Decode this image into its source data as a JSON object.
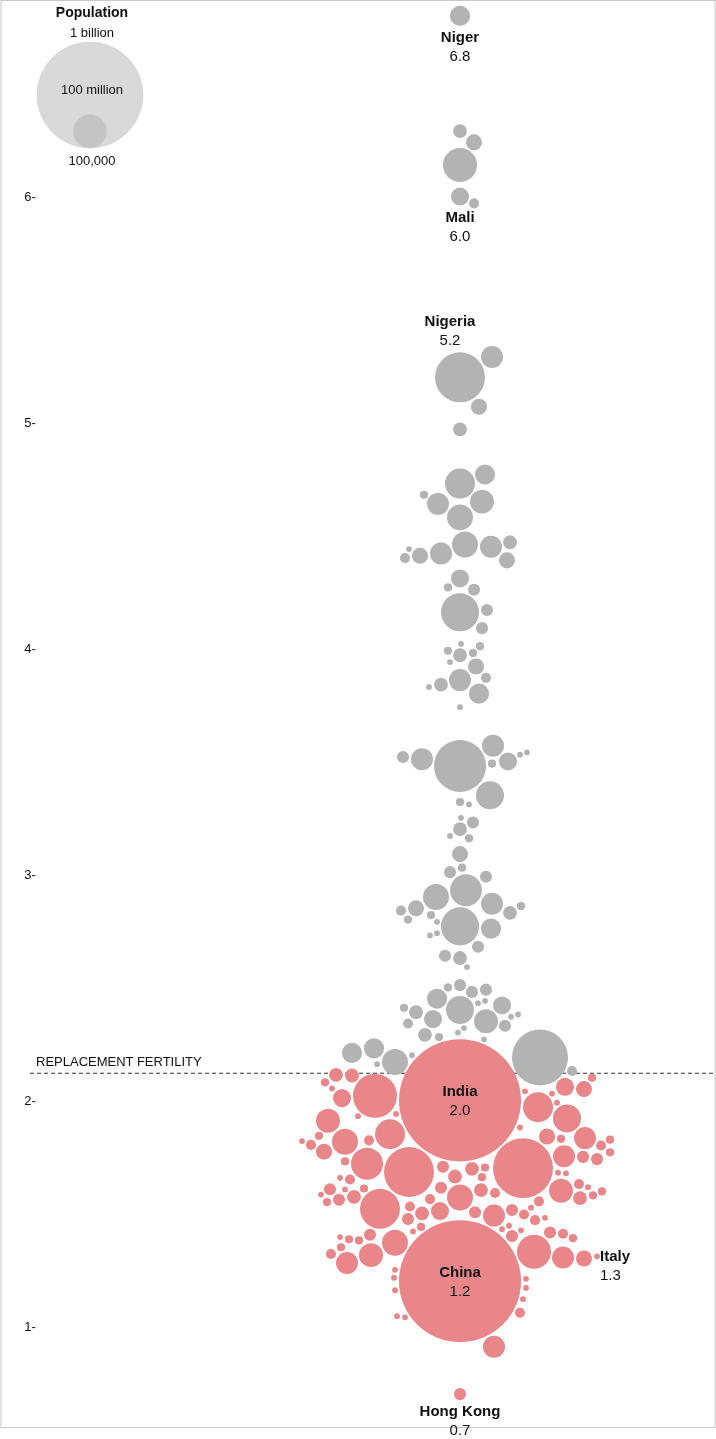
{
  "chart_data": {
    "type": "bubble",
    "legend_title": "Population",
    "size_legend": [
      {
        "value": 1000000000,
        "label": "1 billion"
      },
      {
        "value": 100000000,
        "label": "100 million"
      },
      {
        "value": 100000,
        "label": "100,000"
      }
    ],
    "categories": [
      null
    ],
    "ylim": [
      0.55,
      6.87
    ],
    "yticks": [
      {
        "value": 1,
        "label": "1-"
      },
      {
        "value": 2,
        "label": "2-"
      },
      {
        "value": 3,
        "label": "3-"
      },
      {
        "value": 4,
        "label": "4-"
      },
      {
        "value": 5,
        "label": "5-"
      },
      {
        "value": 6,
        "label": "6-"
      }
    ],
    "tick_labels": "y",
    "ref_lines": [
      {
        "axis": "y",
        "value": 2.12,
        "label": "REPLACEMENT FERTILITY",
        "line_style": "dashed",
        "color": "#333333"
      }
    ],
    "annotations": [
      "Niger",
      "Mali",
      "Nigeria",
      "India",
      "China",
      "Italy",
      "Hong Kong"
    ],
    "series": [
      {
        "color": "#b3b3b3",
        "x": [
          null,
          null,
          null,
          null,
          null,
          null,
          null,
          null,
          null,
          null,
          null,
          null,
          null,
          null,
          null,
          null,
          null,
          null,
          null,
          null,
          null,
          null,
          null,
          null,
          null,
          null,
          null,
          null,
          null,
          null,
          null,
          null,
          null,
          null,
          null,
          null,
          null,
          null,
          null,
          null,
          null,
          null,
          null,
          null,
          null,
          null,
          null,
          null,
          null,
          null,
          null,
          null,
          null,
          null,
          null,
          null,
          null,
          null,
          null,
          null,
          null,
          null,
          null,
          null,
          null,
          null,
          null,
          null,
          null,
          null,
          null,
          null,
          null,
          null,
          null,
          null,
          null,
          null,
          null,
          null,
          null,
          null,
          null,
          null,
          null,
          null,
          null,
          null,
          null,
          null,
          null,
          null,
          null,
          null,
          null,
          null,
          null,
          null,
          null,
          null,
          null,
          null,
          null,
          null,
          null,
          null,
          null
        ],
        "values": [
          6.29,
          6.24,
          6.14,
          5.97,
          5.29,
          5.07,
          4.97,
          4.73,
          4.77,
          4.68,
          4.64,
          4.65,
          4.58,
          4.46,
          4.4,
          4.42,
          4.44,
          4.41,
          4.45,
          4.47,
          4.39,
          4.31,
          4.26,
          4.27,
          4.16,
          4.17,
          4.09,
          4.02,
          3.98,
          3.99,
          3.97,
          4.01,
          3.92,
          3.94,
          3.87,
          3.83,
          3.84,
          3.86,
          3.8,
          3.74,
          3.57,
          3.51,
          3.5,
          3.49,
          3.52,
          3.48,
          3.53,
          3.54,
          3.35,
          3.32,
          3.31,
          3.25,
          3.23,
          3.2,
          3.17,
          3.16,
          3.09,
          3.01,
          3.03,
          2.99,
          2.93,
          2.9,
          2.87,
          2.83,
          2.85,
          2.86,
          2.82,
          2.79,
          2.8,
          2.84,
          2.77,
          2.76,
          2.74,
          2.73,
          2.68,
          2.63,
          2.64,
          2.59,
          2.51,
          2.48,
          2.49,
          2.5,
          2.45,
          2.42,
          2.41,
          2.4,
          2.43,
          2.44,
          2.37,
          2.35,
          2.38,
          2.36,
          2.39,
          2.34,
          2.29,
          2.33,
          2.32,
          2.3,
          2.28,
          2.27,
          2.17,
          2.23,
          2.19,
          2.21,
          2.2,
          2.13,
          2.16
        ],
        "sizes": [
          17000000.0,
          23000000.0,
          103000000.0,
          9000000.0,
          43000000.0,
          23000000.0,
          17000000.0,
          80000000.0,
          36000000.0,
          6000000.0,
          43000000.0,
          51000000.0,
          60000000.0,
          60000000.0,
          9000000.0,
          43000000.0,
          3000000.0,
          23000000.0,
          43000000.0,
          17000000.0,
          23000000.0,
          29000000.0,
          13000000.0,
          6000000.0,
          129000000.0,
          13000000.0,
          13000000.0,
          3000000.0,
          6000000.0,
          6000000.0,
          17000000.0,
          6000000.0,
          23000000.0,
          3000000.0,
          9000000.0,
          3000000.0,
          17000000.0,
          43000000.0,
          36000000.0,
          3000000.0,
          43000000.0,
          43000000.0,
          29000000.0,
          6000000.0,
          13000000.0,
          241000000.0,
          3000000.0,
          3000000.0,
          70000000.0,
          6000000.0,
          3000000.0,
          3000000.0,
          13000000.0,
          17000000.0,
          3000000.0,
          6000000.0,
          23000000.0,
          13000000.0,
          6000000.0,
          13000000.0,
          91000000.0,
          60000000.0,
          43000000.0,
          17000000.0,
          23000000.0,
          6000000.0,
          6000000.0,
          3000000.0,
          6000000.0,
          9000000.0,
          129000000.0,
          36000000.0,
          3000000.0,
          3000000.0,
          13000000.0,
          17000000.0,
          13000000.0,
          3000000.0,
          13000000.0,
          13000000.0,
          13000000.0,
          6000000.0,
          36000000.0,
          29000000.0,
          6000000.0,
          70000000.0,
          3000000.0,
          3000000.0,
          3000000.0,
          51000000.0,
          3000000.0,
          29000000.0,
          17000000.0,
          9000000.0,
          17000000.0,
          13000000.0,
          3000000.0,
          3000000.0,
          6000000.0,
          3000000.0,
          60000000.0,
          36000000.0,
          279000000.0,
          36000000.0,
          3000000.0,
          9000000.0,
          3000000.0
        ]
      },
      {
        "color": "#b3b3b3",
        "x": [
          null,
          null,
          null
        ],
        "values": [
          6.8,
          6.0,
          5.2
        ],
        "sizes": [
          36000000.0,
          29000000.0,
          222000000.0
        ],
        "value_labels": [
          "6.8",
          "6.0",
          "5.2"
        ]
      },
      {
        "color": "#e8868a",
        "x": [
          null,
          null,
          null,
          null,
          null,
          null,
          null,
          null,
          null,
          null,
          null,
          null,
          null,
          null,
          null,
          null,
          null,
          null,
          null,
          null,
          null,
          null,
          null,
          null,
          null,
          null,
          null,
          null,
          null,
          null,
          null,
          null,
          null,
          null,
          null,
          null,
          null,
          null,
          null,
          null,
          null,
          null,
          null,
          null,
          null,
          null,
          null,
          null,
          null,
          null,
          null,
          null,
          null,
          null,
          null,
          null,
          null,
          null,
          null,
          null,
          null,
          null,
          null,
          null,
          null,
          null,
          null,
          null,
          null,
          null,
          null,
          null,
          null,
          null,
          null,
          null,
          null,
          null,
          null,
          null,
          null,
          null,
          null,
          null,
          null,
          null,
          null,
          null,
          null,
          null,
          null,
          null,
          null,
          null,
          null,
          null,
          null,
          null,
          null,
          null,
          null,
          null,
          null,
          null,
          null,
          null,
          null,
          null,
          null
        ],
        "values": [
          2.05,
          2.06,
          2.08,
          2.02,
          2.1,
          2.04,
          2.03,
          1.97,
          1.92,
          1.91,
          2.01,
          2.053,
          1.94,
          2.11,
          2.113,
          1.99,
          1.85,
          1.93,
          1.88,
          1.84,
          1.843,
          1.83,
          1.82,
          1.7,
          1.66,
          1.57,
          1.75,
          1.74,
          1.77,
          1.703,
          1.68,
          1.72,
          1.8,
          1.803,
          1.773,
          1.823,
          1.683,
          1.817,
          1.833,
          1.826,
          1.753,
          1.697,
          1.663,
          1.706,
          1.73,
          1.677,
          1.657,
          1.52,
          1.6,
          1.65,
          1.61,
          1.56,
          1.603,
          1.63,
          1.573,
          1.613,
          1.567,
          1.59,
          1.58,
          1.607,
          1.597,
          1.606,
          1.616,
          1.563,
          1.53,
          1.49,
          1.55,
          1.525,
          1.5,
          1.505,
          1.495,
          1.475,
          1.51,
          1.515,
          1.553,
          1.48,
          1.583,
          1.47,
          1.38,
          1.4,
          1.385,
          1.415,
          1.37,
          1.405,
          1.43,
          1.42,
          1.44,
          1.32,
          1.35,
          1.31,
          1.315,
          1.41,
          1.39,
          1.395,
          1.445,
          1.425,
          1.305,
          1.28,
          1.33,
          1.21,
          1.215,
          1.17,
          1.16,
          1.25,
          1.12,
          1.06,
          1.04,
          1.045,
          0.91
        ],
        "sizes": [
          23000000.0,
          29000000.0,
          6000000.0,
          172000000.0,
          6000000.0,
          3000000.0,
          3000000.0,
          80000000.0,
          70000000.0,
          51000000.0,
          29000000.0,
          3000000.0,
          3000000.0,
          17000000.0,
          17000000.0,
          3000000.0,
          80000000.0,
          3000000.0,
          3000000.0,
          23000000.0,
          6000000.0,
          6000000.0,
          3000000.0,
          320000000.0,
          6000000.0,
          60000000.0,
          13000000.0,
          13000000.0,
          6000000.0,
          6000000.0,
          3000000.0,
          91000000.0,
          9000000.0,
          9000000.0,
          23000000.0,
          9000000.0,
          222000000.0,
          60000000.0,
          43000000.0,
          6000000.0,
          43000000.0,
          17000000.0,
          17000000.0,
          13000000.0,
          6000000.0,
          3000000.0,
          3000000.0,
          142000000.0,
          51000000.0,
          9000000.0,
          6000000.0,
          13000000.0,
          17000000.0,
          9000000.0,
          17000000.0,
          13000000.0,
          17000000.0,
          9000000.0,
          6000000.0,
          13000000.0,
          6000000.0,
          3000000.0,
          3000000.0,
          9000000.0,
          9000000.0,
          43000000.0,
          6000000.0,
          3000000.0,
          17000000.0,
          13000000.0,
          9000000.0,
          13000000.0,
          29000000.0,
          13000000.0,
          9000000.0,
          3000000.0,
          3000000.0,
          9000000.0,
          6000000.0,
          13000000.0,
          6000000.0,
          13000000.0,
          60000000.0,
          13000000.0,
          3000000.0,
          3000000.0,
          6000000.0,
          9000000.0,
          6000000.0,
          3000000.0,
          51000000.0,
          9000000.0,
          6000000.0,
          3000000.0,
          3000000.0,
          3000000.0,
          43000000.0,
          43000000.0,
          103000000.0,
          3000000.0,
          3000000.0,
          3000000.0,
          3000000.0,
          3000000.0,
          3000000.0,
          9000000.0,
          3000000.0,
          3000000.0,
          43000000.0
        ]
      },
      {
        "color": "#e8868a",
        "x": [
          null,
          null,
          null,
          null
        ],
        "values": [
          2.0,
          1.2,
          1.3,
          0.7
        ],
        "sizes": [
          1325000000.0,
          1325000000.0,
          23000000.0,
          13000000.0
        ],
        "value_labels": [
          "2.0",
          "1.2",
          "1.3",
          "0.7"
        ]
      }
    ]
  }
}
